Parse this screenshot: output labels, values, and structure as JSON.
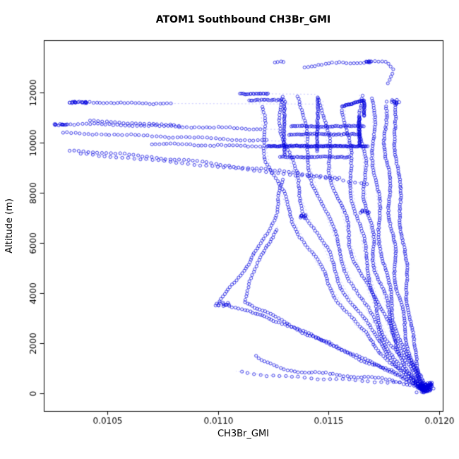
{
  "chart_data": {
    "type": "scatter",
    "title": "ATOM1 Southbound CH3Br_GMI",
    "xlabel": "CH3Br_GMI",
    "ylabel": "Altitude (m)",
    "xlim": [
      0.010213,
      0.012016
    ],
    "ylim": [
      -704,
      14084
    ],
    "xticks": [
      0.0105,
      0.011,
      0.0115,
      0.012
    ],
    "xtick_labels": [
      "0.0105",
      "0.0110",
      "0.0115",
      "0.0120"
    ],
    "yticks": [
      0,
      2000,
      4000,
      6000,
      8000,
      10000,
      12000
    ],
    "ytick_labels": [
      "0",
      "2000",
      "4000",
      "6000",
      "8000",
      "10000",
      "12000"
    ],
    "grid": false,
    "legend": "none",
    "marker": {
      "shape": "open-circle",
      "color": "#0000DD",
      "radius": 2.1,
      "alpha": 0.8
    },
    "line": {
      "color": "#0000FF",
      "dash": [
        2,
        3
      ],
      "alpha": 0.35,
      "width": 0.7
    },
    "axis_color": "#000000",
    "series": [
      {
        "name": "profile-right-1",
        "sp": 3.2,
        "amp": 2.5,
        "wl": 110,
        "pts": [
          [
            0.01194,
            60
          ],
          [
            0.01191,
            900
          ],
          [
            0.01188,
            2000
          ],
          [
            0.011862,
            3500
          ],
          [
            0.011848,
            5000
          ],
          [
            0.011832,
            6500
          ],
          [
            0.01182,
            8000
          ],
          [
            0.01181,
            9200
          ],
          [
            0.011802,
            10400
          ],
          [
            0.011792,
            11600
          ]
        ]
      },
      {
        "name": "profile-right-2",
        "sp": 3.2,
        "amp": 3,
        "wl": 95,
        "pts": [
          [
            0.011935,
            80
          ],
          [
            0.011882,
            1200
          ],
          [
            0.011842,
            2600
          ],
          [
            0.011812,
            4200
          ],
          [
            0.01179,
            6000
          ],
          [
            0.011776,
            7600
          ],
          [
            0.011766,
            9000
          ],
          [
            0.011757,
            10300
          ],
          [
            0.011752,
            11500
          ]
        ]
      },
      {
        "name": "profile-right-3",
        "sp": 3.4,
        "amp": 3.5,
        "wl": 120,
        "pts": [
          [
            0.01193,
            100
          ],
          [
            0.011852,
            1500
          ],
          [
            0.011796,
            3000
          ],
          [
            0.011756,
            4800
          ],
          [
            0.01173,
            6600
          ],
          [
            0.011716,
            8200
          ],
          [
            0.011706,
            9500
          ],
          [
            0.0117,
            10800
          ],
          [
            0.011696,
            11800
          ]
        ]
      },
      {
        "name": "profile-right-4",
        "sp": 3.4,
        "amp": 4,
        "wl": 100,
        "pts": [
          [
            0.011938,
            50
          ],
          [
            0.01183,
            1700
          ],
          [
            0.011762,
            3400
          ],
          [
            0.011712,
            5200
          ],
          [
            0.01168,
            7000
          ],
          [
            0.011662,
            8600
          ],
          [
            0.011652,
            9800
          ],
          [
            0.011646,
            11000
          ],
          [
            0.01164,
            11900
          ]
        ]
      },
      {
        "name": "profile-mid-5",
        "sp": 3.6,
        "amp": 4.5,
        "wl": 130,
        "pts": [
          [
            0.011926,
            120
          ],
          [
            0.0118,
            1900
          ],
          [
            0.01172,
            3800
          ],
          [
            0.01166,
            5600
          ],
          [
            0.011622,
            7400
          ],
          [
            0.011596,
            9000
          ],
          [
            0.011582,
            10200
          ],
          [
            0.011574,
            11400
          ]
        ]
      },
      {
        "name": "profile-mid-6",
        "sp": 3.6,
        "amp": 5,
        "wl": 115,
        "pts": [
          [
            0.011932,
            70
          ],
          [
            0.011772,
            2100
          ],
          [
            0.011672,
            4200
          ],
          [
            0.011592,
            6200
          ],
          [
            0.011536,
            8000
          ],
          [
            0.011502,
            9400
          ],
          [
            0.011482,
            10600
          ],
          [
            0.011474,
            11700
          ]
        ]
      },
      {
        "name": "profile-mid-7",
        "sp": 3.8,
        "amp": 5,
        "wl": 140,
        "pts": [
          [
            0.011928,
            90
          ],
          [
            0.01173,
            2300
          ],
          [
            0.0116,
            4600
          ],
          [
            0.0115,
            6800
          ],
          [
            0.011432,
            8600
          ],
          [
            0.011396,
            9800
          ],
          [
            0.011378,
            11000
          ],
          [
            0.01137,
            11850
          ]
        ]
      },
      {
        "name": "profile-mid-8",
        "sp": 3.8,
        "amp": 5.5,
        "wl": 125,
        "pts": [
          [
            0.01192,
            110
          ],
          [
            0.011682,
            2500
          ],
          [
            0.011522,
            5000
          ],
          [
            0.011402,
            7200
          ],
          [
            0.011332,
            9000
          ],
          [
            0.011302,
            10200
          ],
          [
            0.011288,
            11400
          ],
          [
            0.011282,
            11850
          ]
        ]
      },
      {
        "name": "profile-left-9",
        "sp": 4,
        "amp": 5,
        "wl": 110,
        "pts": [
          [
            0.011916,
            130
          ],
          [
            0.011622,
            2700
          ],
          [
            0.011432,
            5400
          ],
          [
            0.011302,
            7600
          ],
          [
            0.011232,
            9200
          ],
          [
            0.011202,
            10400
          ],
          [
            0.011192,
            11500
          ]
        ]
      },
      {
        "name": "profile-lowbranch-10",
        "sp": 4,
        "amp": 2.5,
        "wl": 90,
        "pts": [
          [
            0.01193,
            150
          ],
          [
            0.0118,
            800
          ],
          [
            0.01165,
            1400
          ],
          [
            0.0115,
            2000
          ],
          [
            0.01135,
            2600
          ],
          [
            0.0112,
            3100
          ],
          [
            0.01108,
            3400
          ],
          [
            0.011012,
            3620
          ],
          [
            0.011052,
            4200
          ],
          [
            0.011122,
            5000
          ],
          [
            0.011202,
            6000
          ],
          [
            0.011262,
            7200
          ],
          [
            0.0113,
            8600
          ]
        ]
      },
      {
        "name": "profile-lowbranch-11",
        "sp": 4.2,
        "amp": 2.5,
        "wl": 100,
        "pts": [
          [
            0.011926,
            200
          ],
          [
            0.01175,
            1000
          ],
          [
            0.01156,
            1700
          ],
          [
            0.0114,
            2400
          ],
          [
            0.011282,
            2950
          ],
          [
            0.011182,
            3300
          ],
          [
            0.011122,
            3700
          ],
          [
            0.011142,
            4500
          ],
          [
            0.011202,
            5500
          ],
          [
            0.011272,
            6700
          ]
        ]
      },
      {
        "name": "bottom-arc",
        "sp": 5,
        "amp": 1.5,
        "wl": 80,
        "pts": [
          [
            0.0119,
            300
          ],
          [
            0.01179,
            500
          ],
          [
            0.01166,
            650
          ],
          [
            0.01152,
            750
          ],
          [
            0.01139,
            850
          ],
          [
            0.011282,
            1000
          ],
          [
            0.011202,
            1250
          ],
          [
            0.011162,
            1550
          ]
        ]
      },
      {
        "name": "bottom-sparse",
        "sp": 9,
        "amp": 1,
        "wl": 80,
        "pts": [
          [
            0.01188,
            380
          ],
          [
            0.0117,
            480
          ],
          [
            0.01152,
            560
          ],
          [
            0.01135,
            640
          ],
          [
            0.0112,
            740
          ],
          [
            0.011082,
            880
          ]
        ]
      },
      {
        "name": "top-arc",
        "sp": 5,
        "amp": 1.5,
        "wl": 70,
        "pts": [
          [
            0.01139,
            13050
          ],
          [
            0.01148,
            13120
          ],
          [
            0.01158,
            13180
          ],
          [
            0.01168,
            13230
          ],
          [
            0.01176,
            13180
          ],
          [
            0.011792,
            12950
          ],
          [
            0.011782,
            12600
          ],
          [
            0.011762,
            12300
          ]
        ]
      },
      {
        "name": "top-pair",
        "sp": 4,
        "amp": 0.5,
        "wl": 50,
        "pts": [
          [
            0.011258,
            13180
          ],
          [
            0.011302,
            13230
          ]
        ]
      },
      {
        "name": "left-chain-10700",
        "sp": 5.5,
        "amp": 0.8,
        "wl": 90,
        "pts": [
          [
            0.010264,
            10720
          ],
          [
            0.01036,
            10742
          ],
          [
            0.01048,
            10722
          ],
          [
            0.0106,
            10692
          ],
          [
            0.01072,
            10662
          ],
          [
            0.01084,
            10632
          ],
          [
            0.01096,
            10602
          ],
          [
            0.01108,
            10572
          ],
          [
            0.0112,
            10542
          ]
        ],
        "tail": [
          [
            0.0113,
            10520
          ]
        ]
      },
      {
        "name": "left-chain-10300",
        "sp": 6,
        "amp": 0.8,
        "wl": 100,
        "pts": [
          [
            0.0103,
            10380
          ],
          [
            0.01042,
            10350
          ],
          [
            0.01056,
            10310
          ],
          [
            0.0107,
            10262
          ],
          [
            0.01084,
            10212
          ],
          [
            0.01098,
            10162
          ],
          [
            0.01112,
            10112
          ],
          [
            0.011232,
            10072
          ]
        ],
        "tail": [
          [
            0.0113,
            10050
          ]
        ]
      },
      {
        "name": "left-diagonal-1",
        "sp": 6.5,
        "amp": 0.8,
        "wl": 110,
        "pts": [
          [
            0.01033,
            9700
          ],
          [
            0.01048,
            9600
          ],
          [
            0.01064,
            9480
          ],
          [
            0.0108,
            9340
          ],
          [
            0.01096,
            9180
          ],
          [
            0.01112,
            9020
          ],
          [
            0.01128,
            8860
          ],
          [
            0.01144,
            8700
          ],
          [
            0.01156,
            8560
          ]
        ]
      },
      {
        "name": "left-diagonal-2",
        "sp": 8.5,
        "amp": 0.8,
        "wl": 120,
        "pts": [
          [
            0.01038,
            9560
          ],
          [
            0.0106,
            9380
          ],
          [
            0.01084,
            9180
          ],
          [
            0.01108,
            8960
          ],
          [
            0.01132,
            8740
          ],
          [
            0.01154,
            8520
          ],
          [
            0.01168,
            8360
          ]
        ]
      },
      {
        "name": "left-chain-11600",
        "sp": 5,
        "amp": 0.6,
        "wl": 70,
        "pts": [
          [
            0.01034,
            11620
          ],
          [
            0.01044,
            11600
          ],
          [
            0.01056,
            11580
          ],
          [
            0.01068,
            11570
          ],
          [
            0.01079,
            11560
          ]
        ],
        "tail": [
          [
            0.01145,
            11540
          ]
        ]
      },
      {
        "name": "left-chain-9950",
        "sp": 5.5,
        "amp": 0.6,
        "wl": 80,
        "pts": [
          [
            0.0107,
            9960
          ],
          [
            0.01082,
            9932
          ],
          [
            0.01095,
            9902
          ],
          [
            0.01108,
            9872
          ],
          [
            0.0112,
            9852
          ]
        ],
        "tail": [
          [
            0.0113,
            9840
          ]
        ]
      },
      {
        "name": "left-chain-10850",
        "sp": 6,
        "amp": 0.6,
        "wl": 80,
        "pts": [
          [
            0.01042,
            10860
          ],
          [
            0.01056,
            10800
          ],
          [
            0.0107,
            10742
          ],
          [
            0.01084,
            10692
          ]
        ]
      },
      {
        "name": "ridge-11950",
        "sp": 2,
        "amp": 0.4,
        "wl": 60,
        "pts": [
          [
            0.0111,
            11952
          ],
          [
            0.01116,
            11936
          ],
          [
            0.011232,
            11946
          ]
        ],
        "tail": [
          [
            0.01144,
            11930
          ]
        ]
      },
      {
        "name": "thick-h-9860",
        "sp": 1.3,
        "amp": 0.25,
        "wl": 60,
        "pts": [
          [
            0.01122,
            9860
          ],
          [
            0.01168,
            9860
          ]
        ]
      },
      {
        "name": "thick-v-right-a",
        "sp": 1.3,
        "amp": 0.25,
        "wl": 60,
        "pts": [
          [
            0.01164,
            9860
          ],
          [
            0.01164,
            11050
          ]
        ]
      },
      {
        "name": "thick-v-right-b",
        "sp": 1.3,
        "amp": 0.25,
        "wl": 60,
        "pts": [
          [
            0.01166,
            11050
          ],
          [
            0.01166,
            11700
          ]
        ]
      },
      {
        "name": "thick-diag-top",
        "sp": 1.3,
        "amp": 0.25,
        "wl": 60,
        "pts": [
          [
            0.01156,
            11450
          ],
          [
            0.01166,
            11680
          ]
        ]
      },
      {
        "name": "thick-v-mid-1",
        "sp": 2.2,
        "amp": 0.5,
        "wl": 90,
        "pts": [
          [
            0.0113,
            9500
          ],
          [
            0.0113,
            11650
          ]
        ]
      },
      {
        "name": "thick-v-mid-2",
        "sp": 2.2,
        "amp": 0.5,
        "wl": 90,
        "pts": [
          [
            0.01145,
            9650
          ],
          [
            0.01145,
            11850
          ]
        ]
      },
      {
        "name": "thick-h-10330",
        "sp": 2.4,
        "amp": 0.4,
        "wl": 70,
        "pts": [
          [
            0.01132,
            10330
          ],
          [
            0.01164,
            10330
          ]
        ]
      },
      {
        "name": "thick-h-10650",
        "sp": 2.4,
        "amp": 0.4,
        "wl": 70,
        "pts": [
          [
            0.01133,
            10650
          ],
          [
            0.01166,
            10650
          ]
        ]
      },
      {
        "name": "thick-h-9430",
        "sp": 2.6,
        "amp": 0.4,
        "wl": 70,
        "pts": [
          [
            0.01128,
            9430
          ],
          [
            0.0116,
            9430
          ]
        ]
      },
      {
        "name": "thick-h-11690",
        "sp": 2.6,
        "amp": 0.4,
        "wl": 70,
        "pts": [
          [
            0.01114,
            11680
          ],
          [
            0.0113,
            11700
          ]
        ]
      }
    ],
    "clusters": [
      {
        "name": "surface-blob",
        "x": 0.011935,
        "alt": 230,
        "rx": 4.5e-05,
        "ralt": 240,
        "n": 110
      },
      {
        "name": "cluster-left-11600",
        "x": 0.010355,
        "alt": 11610,
        "rx": 7.5e-05,
        "ralt": 55,
        "n": 16
      },
      {
        "name": "cluster-left-10730",
        "x": 0.01029,
        "alt": 10735,
        "rx": 5e-05,
        "ralt": 40,
        "n": 10
      },
      {
        "name": "cluster-lowbranch",
        "x": 0.01102,
        "alt": 3530,
        "rx": 4e-05,
        "ralt": 120,
        "n": 10
      },
      {
        "name": "cluster-mid-7060",
        "x": 0.01138,
        "alt": 7060,
        "rx": 3e-05,
        "ralt": 90,
        "n": 9
      },
      {
        "name": "cluster-mid-7250",
        "x": 0.01166,
        "alt": 7250,
        "rx": 2.8e-05,
        "ralt": 90,
        "n": 9
      },
      {
        "name": "cluster-top-13230",
        "x": 0.01169,
        "alt": 13230,
        "rx": 4e-05,
        "ralt": 60,
        "n": 7
      },
      {
        "name": "cluster-topright-11620",
        "x": 0.011792,
        "alt": 11620,
        "rx": 4e-05,
        "ralt": 100,
        "n": 12
      }
    ]
  }
}
